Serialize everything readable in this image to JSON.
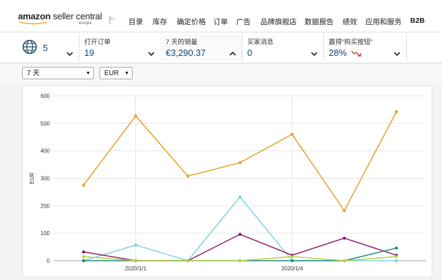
{
  "header": {
    "logo_text": "amazon",
    "logo_sub": " seller central",
    "logo_region": "europe",
    "nav": [
      "目录",
      "库存",
      "确定价格",
      "订单",
      "广告",
      "品牌旗舰店",
      "数据报告",
      "绩效",
      "应用和服务",
      "B2B"
    ]
  },
  "kpis": {
    "marketplaces_count": "5",
    "open_orders": {
      "label": "打开订单",
      "value": "19"
    },
    "sales_7d": {
      "label": "7 天的销量",
      "value": "€3,290.37"
    },
    "buyer_messages": {
      "label": "买家消息",
      "value": "0"
    },
    "buy_box": {
      "label": "赢得\"购买按钮\"",
      "value": "28%",
      "trend": "down"
    }
  },
  "controls": {
    "range": "7 天",
    "currency": "EUR"
  },
  "colors": {
    "orange": "#e8a020",
    "cyan": "#7fd3df",
    "purple": "#8b1a6b",
    "teal": "#1f8a80",
    "yellow": "#b8d040",
    "link_teal": "#147"
  },
  "chart_data": {
    "type": "line",
    "ylabel": "EUR",
    "xlabel": "",
    "ylim": [
      0,
      600
    ],
    "yticks": [
      0,
      100,
      200,
      300,
      400,
      500,
      600
    ],
    "x_tick_labels": [
      {
        "index": 1,
        "label": "2020/1/1"
      },
      {
        "index": 4,
        "label": "2020/1/4"
      }
    ],
    "x_count": 7,
    "grid": true,
    "series": [
      {
        "color": "#e8a020",
        "values": [
          275,
          527,
          308,
          357,
          460,
          182,
          542
        ]
      },
      {
        "color": "#7fd3df",
        "values": [
          0,
          57,
          0,
          232,
          0,
          0,
          0
        ]
      },
      {
        "color": "#8b1a6b",
        "values": [
          32,
          0,
          0,
          96,
          20,
          82,
          20
        ]
      },
      {
        "color": "#1f8a80",
        "values": [
          0,
          0,
          0,
          0,
          0,
          0,
          46
        ]
      },
      {
        "color": "#b8d040",
        "values": [
          15,
          0,
          0,
          0,
          15,
          0,
          15
        ]
      }
    ]
  }
}
